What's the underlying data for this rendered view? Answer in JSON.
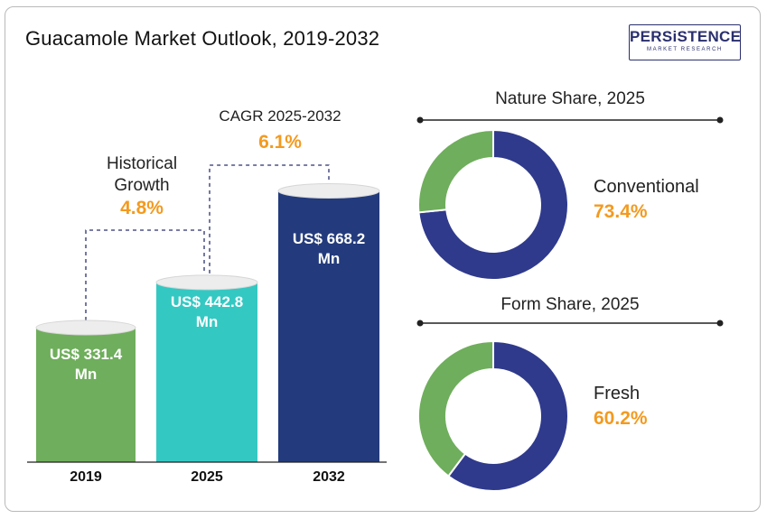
{
  "title": "Guacamole Market Outlook, 2019-2032",
  "logo": {
    "main": "PERSiSTENCE",
    "sub": "MARKET RESEARCH"
  },
  "historical_growth": {
    "label_line1": "Historical",
    "label_line2": "Growth",
    "value": "4.8%"
  },
  "cagr": {
    "label": "CAGR 2025-2032",
    "value": "6.1%"
  },
  "nature_share": {
    "title": "Nature Share, 2025",
    "segment": "Conventional",
    "value": "73.4%"
  },
  "form_share": {
    "title": "Form Share, 2025",
    "segment": "Fresh",
    "value": "60.2%"
  },
  "colors": {
    "green": "#6fae5c",
    "teal": "#34c8c2",
    "navy": "#233b7c",
    "donut_navy": "#2f3a8c",
    "donut_green": "#6fae5c",
    "accent": "#f39a1f"
  },
  "chart_data": [
    {
      "type": "bar",
      "categories": [
        "2019",
        "2025",
        "2032"
      ],
      "values": [
        331.4,
        442.8,
        668.2
      ],
      "labels": [
        {
          "line1": "US$ 331.4",
          "line2": "Mn"
        },
        {
          "line1": "US$ 442.8",
          "line2": "Mn"
        },
        {
          "line1": "US$ 668.2",
          "line2": "Mn"
        }
      ]
    },
    {
      "type": "pie",
      "title": "Nature Share, 2025",
      "slices": [
        {
          "name": "Conventional",
          "value": 73.4
        },
        {
          "name": "",
          "value": 26.6
        }
      ]
    },
    {
      "type": "pie",
      "title": "Form Share, 2025",
      "slices": [
        {
          "name": "Fresh",
          "value": 60.2
        },
        {
          "name": "",
          "value": 39.8
        }
      ]
    }
  ]
}
